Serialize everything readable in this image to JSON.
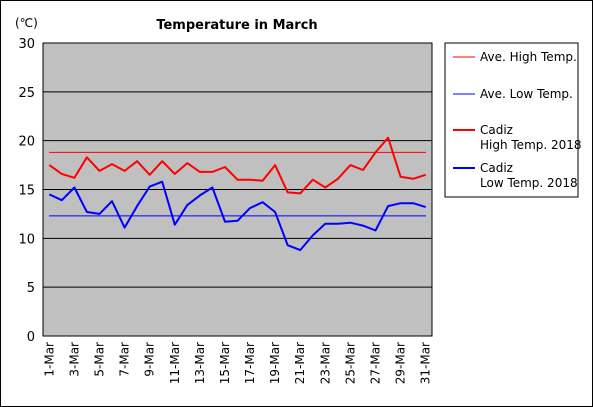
{
  "chart_data": {
    "type": "line",
    "title": "Temperature in March",
    "unit_label": "(℃)",
    "ylim": [
      0,
      30
    ],
    "y_ticks": [
      "0",
      "5",
      "10",
      "15",
      "20",
      "25",
      "30"
    ],
    "categories": [
      "1-Mar",
      "2-Mar",
      "3-Mar",
      "4-Mar",
      "5-Mar",
      "6-Mar",
      "7-Mar",
      "8-Mar",
      "9-Mar",
      "10-Mar",
      "11-Mar",
      "12-Mar",
      "13-Mar",
      "14-Mar",
      "15-Mar",
      "16-Mar",
      "17-Mar",
      "18-Mar",
      "19-Mar",
      "20-Mar",
      "21-Mar",
      "22-Mar",
      "23-Mar",
      "24-Mar",
      "25-Mar",
      "26-Mar",
      "27-Mar",
      "28-Mar",
      "29-Mar",
      "30-Mar",
      "31-Mar"
    ],
    "x_tick_labels": [
      "1-Mar",
      "3-Mar",
      "5-Mar",
      "7-Mar",
      "9-Mar",
      "11-Mar",
      "13-Mar",
      "15-Mar",
      "17-Mar",
      "19-Mar",
      "21-Mar",
      "23-Mar",
      "25-Mar",
      "27-Mar",
      "29-Mar",
      "31-Mar"
    ],
    "grid": true,
    "legend_position": "right",
    "plot_background": "#c0c0c0",
    "series": [
      {
        "name": "Ave. High Temp.",
        "color": "#ff0000",
        "width": 1,
        "constant": 18.8
      },
      {
        "name": "Ave. Low Temp.",
        "color": "#0000ff",
        "width": 1,
        "constant": 12.3
      },
      {
        "name": "Cadiz\nHigh Temp. 2018",
        "color": "#ff0000",
        "width": 2,
        "values": [
          17.5,
          16.6,
          16.2,
          18.3,
          16.9,
          17.6,
          16.9,
          17.9,
          16.5,
          17.9,
          16.6,
          17.7,
          16.8,
          16.8,
          17.3,
          16.0,
          16.0,
          15.9,
          17.5,
          14.7,
          14.6,
          16.0,
          15.2,
          16.1,
          17.5,
          17.0,
          18.8,
          20.3,
          16.3,
          16.1,
          16.5
        ]
      },
      {
        "name": "Cadiz\nLow Temp. 2018",
        "color": "#0000ff",
        "width": 2,
        "values": [
          14.5,
          13.9,
          15.2,
          12.7,
          12.5,
          13.8,
          11.1,
          13.3,
          15.3,
          15.8,
          11.4,
          13.4,
          14.4,
          15.2,
          11.7,
          11.8,
          13.1,
          13.7,
          12.7,
          9.3,
          8.8,
          10.3,
          11.5,
          11.5,
          11.6,
          11.3,
          10.8,
          13.3,
          13.6,
          13.6,
          13.2
        ]
      }
    ]
  }
}
